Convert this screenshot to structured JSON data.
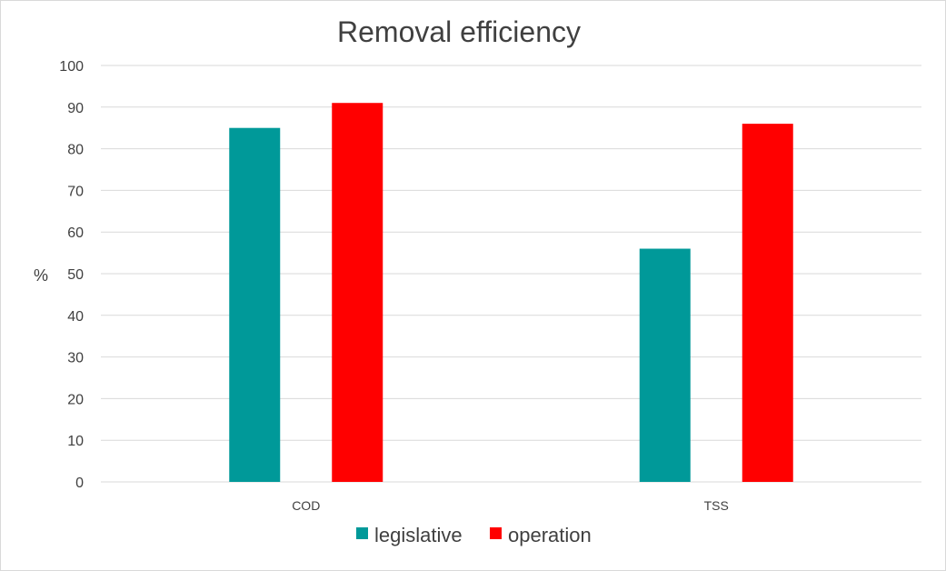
{
  "chart_data": {
    "type": "bar",
    "title": "Removal efficiency",
    "xlabel": "",
    "ylabel": "%",
    "categories": [
      "COD",
      "TSS"
    ],
    "series": [
      {
        "name": "legislative",
        "color": "#009999",
        "values": [
          85,
          56
        ]
      },
      {
        "name": "operation",
        "color": "#ff0000",
        "values": [
          91,
          86
        ]
      }
    ],
    "ylim": [
      0,
      100
    ],
    "yticks": [
      0,
      10,
      20,
      30,
      40,
      50,
      60,
      70,
      80,
      90,
      100
    ],
    "grid": true,
    "legend_position": "bottom"
  }
}
